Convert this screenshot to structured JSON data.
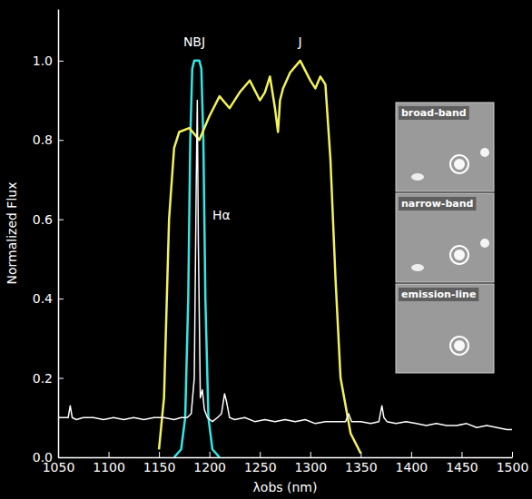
{
  "chart_data": {
    "type": "line",
    "xlabel": "λobs (nm)",
    "ylabel": "Normalized Flux",
    "xlim": [
      1050,
      1500
    ],
    "xticks": [
      1050,
      1100,
      1150,
      1200,
      1250,
      1300,
      1350,
      1400,
      1450,
      1500
    ],
    "ylim": [
      0,
      1.13
    ],
    "yticks": [
      {
        "value": 0,
        "label": "0.0"
      },
      {
        "value": 0.2,
        "label": "0.2"
      },
      {
        "value": 0.4,
        "label": "0.4"
      },
      {
        "value": 0.6,
        "label": "0.6"
      },
      {
        "value": 0.8,
        "label": "0.8"
      },
      {
        "value": 1,
        "label": "1.0"
      }
    ],
    "grid": false,
    "series": [
      {
        "color": "#ffffff",
        "x": [
          1050,
          1055,
          1060,
          1062,
          1064,
          1068,
          1075,
          1085,
          1095,
          1105,
          1115,
          1125,
          1135,
          1145,
          1155,
          1165,
          1172,
          1178,
          1182,
          1185,
          1187,
          1188,
          1189,
          1191,
          1193,
          1195,
          1198,
          1203,
          1208,
          1212,
          1215,
          1217,
          1220,
          1225,
          1235,
          1245,
          1255,
          1265,
          1275,
          1285,
          1295,
          1305,
          1315,
          1325,
          1335,
          1338,
          1341,
          1350,
          1360,
          1368,
          1371,
          1373,
          1376,
          1385,
          1395,
          1405,
          1415,
          1425,
          1435,
          1445,
          1455,
          1465,
          1475,
          1485,
          1495,
          1500
        ],
        "values": [
          0.1,
          0.1,
          0.1,
          0.13,
          0.1,
          0.095,
          0.1,
          0.1,
          0.095,
          0.1,
          0.095,
          0.1,
          0.095,
          0.1,
          0.1,
          0.095,
          0.1,
          0.1,
          0.11,
          0.2,
          0.7,
          0.9,
          0.55,
          0.15,
          0.17,
          0.12,
          0.1,
          0.09,
          0.1,
          0.11,
          0.16,
          0.14,
          0.1,
          0.095,
          0.1,
          0.09,
          0.095,
          0.09,
          0.095,
          0.09,
          0.095,
          0.085,
          0.09,
          0.09,
          0.09,
          0.11,
          0.09,
          0.09,
          0.085,
          0.09,
          0.13,
          0.1,
          0.09,
          0.085,
          0.09,
          0.085,
          0.08,
          0.085,
          0.08,
          0.08,
          0.085,
          0.075,
          0.08,
          0.075,
          0.07,
          0.07
        ]
      },
      {
        "name": "NBJ",
        "color": "#33e6e6",
        "x": [
          1165,
          1172,
          1176,
          1179,
          1181,
          1183,
          1185,
          1190,
          1192,
          1194,
          1196,
          1199,
          1203,
          1210
        ],
        "values": [
          0.0,
          0.02,
          0.1,
          0.4,
          0.8,
          0.98,
          1.0,
          1.0,
          0.98,
          0.8,
          0.4,
          0.1,
          0.02,
          0.0
        ]
      },
      {
        "name": "J",
        "color": "#f2f25a",
        "x": [
          1150,
          1155,
          1160,
          1165,
          1170,
          1180,
          1190,
          1200,
          1210,
          1220,
          1230,
          1240,
          1250,
          1255,
          1260,
          1265,
          1268,
          1270,
          1273,
          1280,
          1290,
          1300,
          1305,
          1310,
          1315,
          1320,
          1325,
          1330,
          1340,
          1350
        ],
        "values": [
          0.02,
          0.15,
          0.6,
          0.78,
          0.82,
          0.83,
          0.8,
          0.86,
          0.91,
          0.88,
          0.92,
          0.95,
          0.9,
          0.92,
          0.96,
          0.88,
          0.82,
          0.9,
          0.93,
          0.97,
          1.0,
          0.95,
          0.93,
          0.96,
          0.94,
          0.75,
          0.45,
          0.2,
          0.06,
          0.01
        ]
      }
    ],
    "annotations": [
      {
        "text": "Hα",
        "x": 1203,
        "y": 0.6
      }
    ],
    "insets": [
      "broad-band",
      "narrow-band",
      "emission-line"
    ]
  }
}
